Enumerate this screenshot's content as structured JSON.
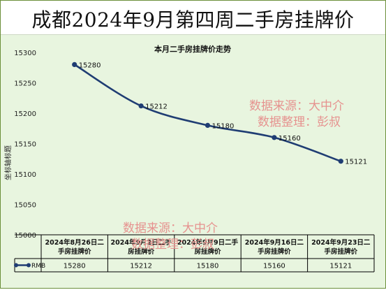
{
  "page_title": "成都2024年9月第四周二手房挂牌价",
  "watermarks": [
    {
      "line1": "数据来源：大中介",
      "line2": "数据整理：彭叔"
    },
    {
      "line1": "数据来源：大中介",
      "line2": "数据整理：彭叔"
    }
  ],
  "colors": {
    "line": "#1f3d73",
    "watermark": "#e6928f",
    "plot_bg": "#e8f5df"
  },
  "chart_data": {
    "type": "line",
    "title": "本月二手房挂牌价走势",
    "ylabel": "坐标轴标题",
    "xlabel": "",
    "categories": [
      "2024年8月26日二手房挂牌价",
      "2024年9月2日二手房挂牌价",
      "2024年9月9日二手房挂牌价",
      "2024年9月16日二手房挂牌价",
      "2024年9月23日二手房挂牌价"
    ],
    "category_lines": [
      [
        "2024年8月26日二",
        "手房挂牌价"
      ],
      [
        "2024年9月2日二手",
        "房挂牌价"
      ],
      [
        "2024年9月9日二手",
        "房挂牌价"
      ],
      [
        "2024年9月16日二",
        "手房挂牌价"
      ],
      [
        "2024年9月23日二",
        "手房挂牌价"
      ]
    ],
    "series": [
      {
        "name": "RMB",
        "values": [
          15280,
          15212,
          15180,
          15160,
          15121
        ]
      }
    ],
    "ylim": [
      15000,
      15300
    ],
    "yticks": [
      15000,
      15050,
      15100,
      15150,
      15200,
      15250,
      15300
    ],
    "grid": false,
    "legend": "data-table-left"
  }
}
